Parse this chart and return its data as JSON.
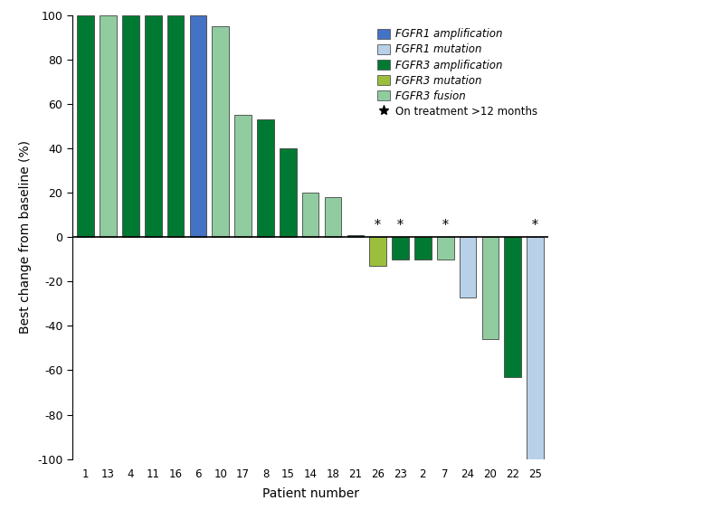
{
  "patients": [
    1,
    13,
    4,
    11,
    16,
    6,
    10,
    17,
    8,
    15,
    14,
    18,
    21,
    26,
    23,
    2,
    7,
    24,
    20,
    22,
    25
  ],
  "patient_values": {
    "1": 100,
    "13": 100,
    "4": 100,
    "11": 100,
    "16": 100,
    "6": 100,
    "10": 95,
    "17": 55,
    "8": 53,
    "15": 40,
    "14": 20,
    "18": 18,
    "21": 1,
    "26": -13,
    "23": -10,
    "2": -10,
    "7": -10,
    "24": -27,
    "20": -46,
    "22": -63,
    "25": -100
  },
  "patient_colors": {
    "1": "#007A33",
    "13": "#90CCA0",
    "4": "#007A33",
    "11": "#007A33",
    "16": "#007A33",
    "6": "#4472C4",
    "10": "#90CCA0",
    "17": "#90CCA0",
    "8": "#007A33",
    "15": "#007A33",
    "14": "#90CCA0",
    "18": "#90CCA0",
    "21": "#007A33",
    "26": "#9BBF3C",
    "23": "#007A33",
    "2": "#007A33",
    "7": "#90CCA0",
    "24": "#B8D0E8",
    "20": "#90CCA0",
    "22": "#007A33",
    "25": "#B8D0E8"
  },
  "star_patients": [
    26,
    23,
    7,
    25
  ],
  "ylim": [
    -100,
    100
  ],
  "yticks": [
    -100,
    -80,
    -60,
    -40,
    -20,
    0,
    20,
    40,
    60,
    80,
    100
  ],
  "ylabel": "Best change from baseline (%)",
  "xlabel": "Patient number",
  "legend_labels": [
    "FGFR1 amplification",
    "FGFR1 mutation",
    "FGFR3 amplification",
    "FGFR3 mutation",
    "FGFR3 fusion"
  ],
  "legend_colors": [
    "#4472C4",
    "#B8D0E8",
    "#007A33",
    "#9BBF3C",
    "#90CCA0"
  ],
  "bar_width": 0.75
}
